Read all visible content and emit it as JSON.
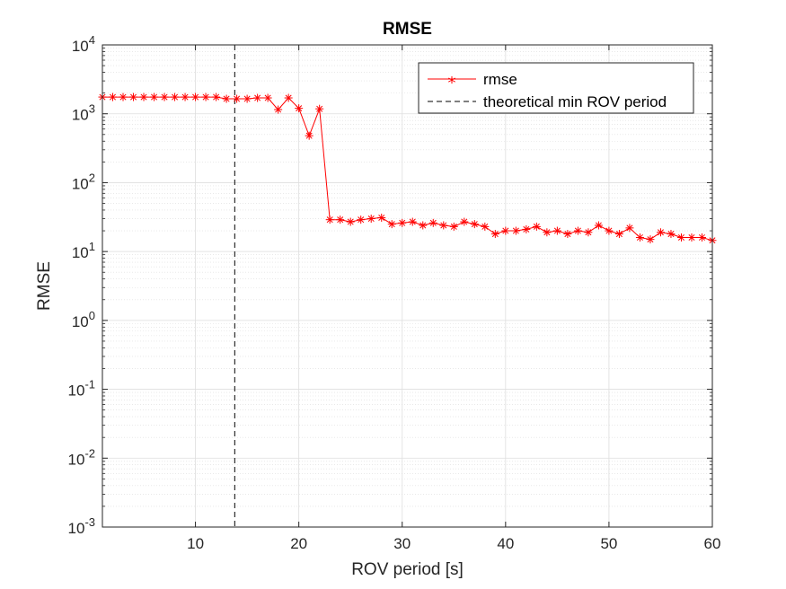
{
  "chart_data": {
    "type": "line",
    "title": "RMSE",
    "xlabel": "ROV period [s]",
    "ylabel": "RMSE",
    "xlim": [
      1,
      60
    ],
    "ylim": [
      0.001,
      10000
    ],
    "yscale": "log",
    "grid": "on",
    "minor_grid": "on",
    "legend_position": "top-right",
    "x_ticks": [
      10,
      20,
      30,
      40,
      50,
      60
    ],
    "y_tick_base": "10",
    "y_tick_exponents": [
      "-3",
      "-2",
      "-1",
      "0",
      "1",
      "2",
      "3",
      "4"
    ],
    "series": [
      {
        "name": "rmse",
        "color": "#ff0000",
        "marker": "asterisk",
        "line": "solid",
        "x": [
          1,
          2,
          3,
          4,
          5,
          6,
          7,
          8,
          9,
          10,
          11,
          12,
          13,
          14,
          15,
          16,
          17,
          18,
          19,
          20,
          21,
          22,
          23,
          24,
          25,
          26,
          27,
          28,
          29,
          30,
          31,
          32,
          33,
          34,
          35,
          36,
          37,
          38,
          39,
          40,
          41,
          42,
          43,
          44,
          45,
          46,
          47,
          48,
          49,
          50,
          51,
          52,
          53,
          54,
          55,
          56,
          57,
          58,
          59,
          60
        ],
        "y": [
          1750,
          1750,
          1750,
          1750,
          1750,
          1750,
          1750,
          1750,
          1750,
          1750,
          1750,
          1750,
          1650,
          1650,
          1650,
          1700,
          1700,
          1150,
          1700,
          1200,
          480,
          1180,
          29,
          29,
          27,
          29,
          30,
          31,
          25,
          26,
          27,
          24,
          26,
          24,
          23,
          27,
          25,
          23,
          18,
          20,
          20,
          21,
          23,
          19,
          20,
          18,
          20,
          19,
          24,
          20,
          18,
          22,
          16,
          15,
          19,
          18,
          16,
          16,
          16,
          14.5
        ]
      },
      {
        "name": "theoretical min ROV period",
        "color": "#000000",
        "line": "dashed",
        "x_value": 13.8
      }
    ]
  },
  "legend": {
    "entries": [
      "rmse",
      "theoretical min ROV period"
    ]
  }
}
